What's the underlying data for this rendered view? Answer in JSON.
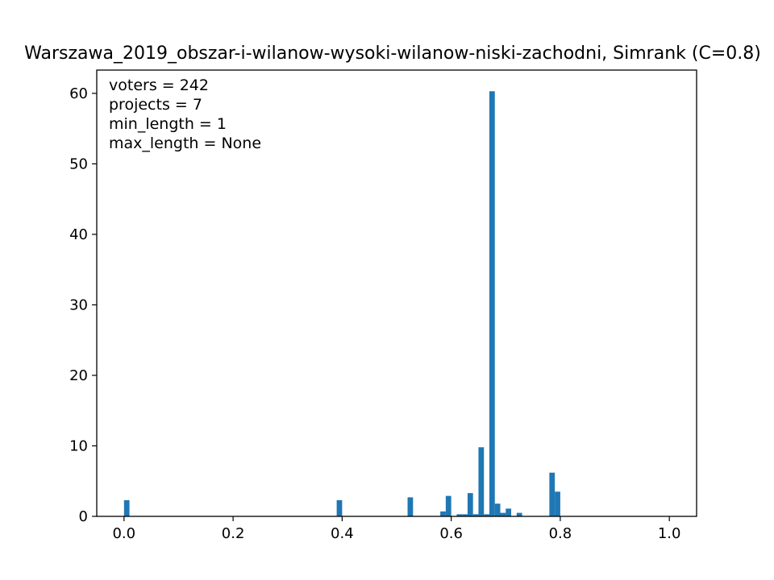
{
  "chart_data": {
    "type": "bar",
    "title": "Warszawa_2019_obszar-i-wilanow-wysoki-wilanow-niski-zachodni, Simrank (C=0.8)",
    "xlabel": "",
    "ylabel": "",
    "xlim": [
      -0.05,
      1.05
    ],
    "ylim": [
      0,
      63.3
    ],
    "bin_width": 0.01,
    "x_ticks": [
      "0.0",
      "0.2",
      "0.4",
      "0.6",
      "0.8",
      "1.0"
    ],
    "x_tick_values": [
      0.0,
      0.2,
      0.4,
      0.6,
      0.8,
      1.0
    ],
    "y_ticks": [
      "0",
      "10",
      "20",
      "30",
      "40",
      "50",
      "60"
    ],
    "y_tick_values": [
      0,
      10,
      20,
      30,
      40,
      50,
      60
    ],
    "grid": false,
    "color": "#1f77b4",
    "bars": [
      {
        "x": 0.0,
        "value": 2.3
      },
      {
        "x": 0.39,
        "value": 2.3
      },
      {
        "x": 0.52,
        "value": 2.7
      },
      {
        "x": 0.58,
        "value": 0.7
      },
      {
        "x": 0.59,
        "value": 2.9
      },
      {
        "x": 0.61,
        "value": 0.3
      },
      {
        "x": 0.62,
        "value": 0.3
      },
      {
        "x": 0.63,
        "value": 3.3
      },
      {
        "x": 0.64,
        "value": 0.3
      },
      {
        "x": 0.65,
        "value": 9.8
      },
      {
        "x": 0.66,
        "value": 0.3
      },
      {
        "x": 0.67,
        "value": 60.3
      },
      {
        "x": 0.68,
        "value": 1.8
      },
      {
        "x": 0.69,
        "value": 0.5
      },
      {
        "x": 0.7,
        "value": 1.1
      },
      {
        "x": 0.72,
        "value": 0.5
      },
      {
        "x": 0.78,
        "value": 6.2
      },
      {
        "x": 0.79,
        "value": 3.5
      }
    ],
    "annotations": [
      "voters = 242",
      "projects = 7",
      "min_length = 1",
      "max_length = None"
    ]
  }
}
